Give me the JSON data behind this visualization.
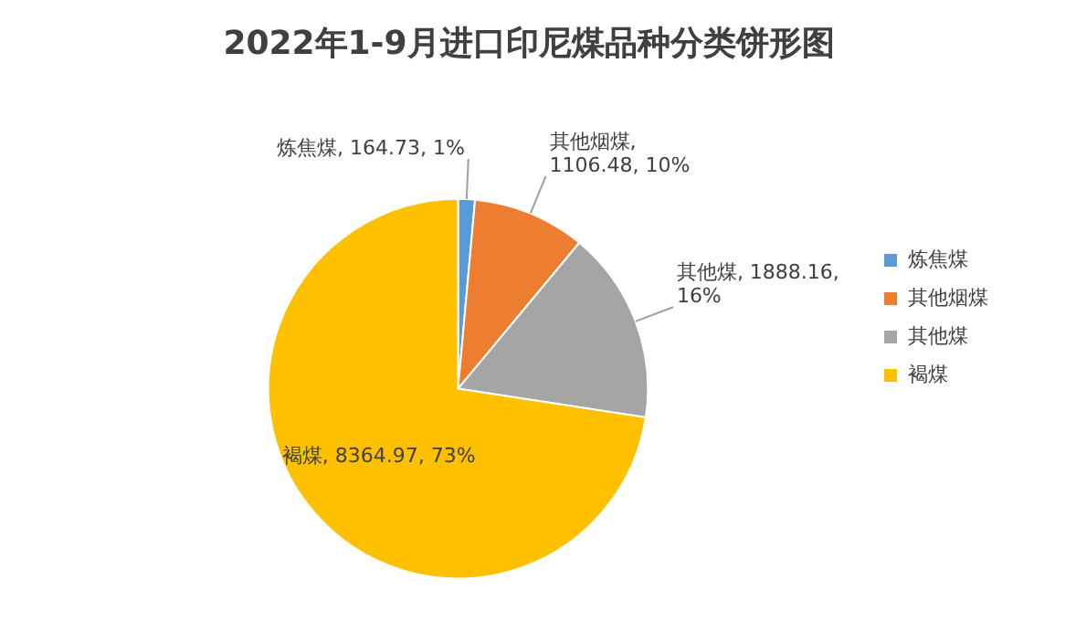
{
  "chart_data": {
    "type": "pie",
    "title": "2022年1-9月进口印尼煤品种分类饼形图",
    "categories": [
      "炼焦煤",
      "其他烟煤",
      "其他煤",
      "褐煤"
    ],
    "values": [
      164.73,
      1106.48,
      1888.16,
      8364.97
    ],
    "colors": [
      "#5b9bd5",
      "#ed7d31",
      "#a5a5a5",
      "#ffc000"
    ],
    "value_labels": [
      "炼焦煤, 164.73, 1%",
      "其他烟煤, 1106.48, 10%",
      "其他煤, 1888.16, 16%",
      "褐煤, 8364.97, 73%"
    ],
    "legend": "right"
  }
}
